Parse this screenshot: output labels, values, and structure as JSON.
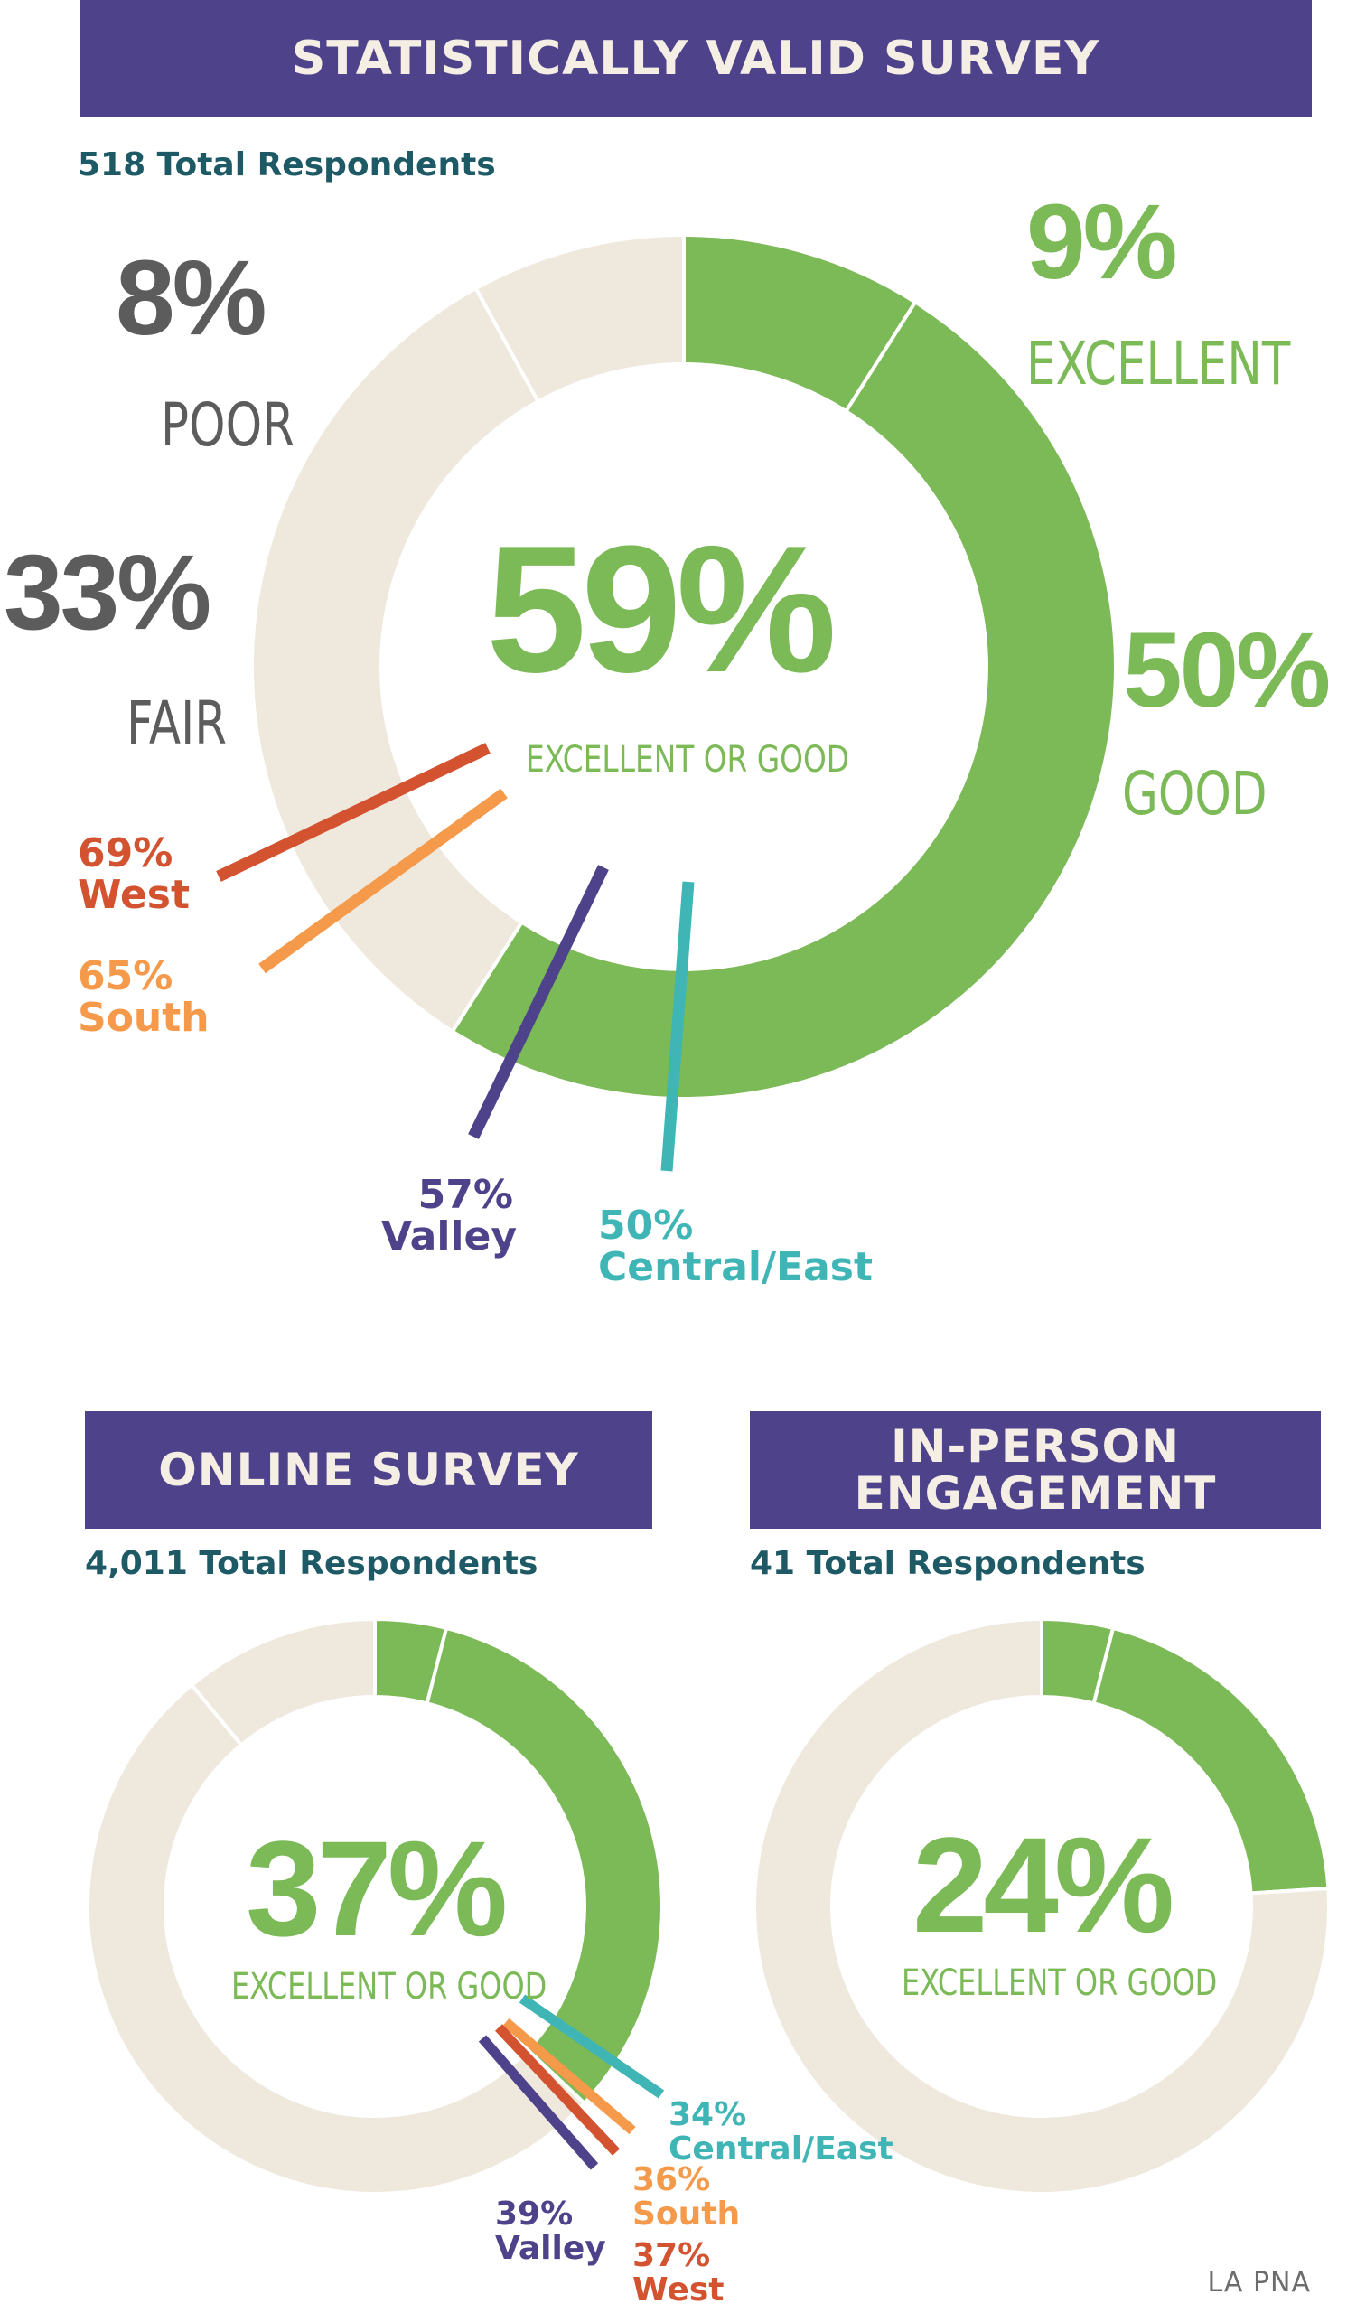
{
  "colors": {
    "banner": "#4e438a",
    "banner_text": "#f5eee4",
    "green": "#7cb957",
    "beige": "#efe8dd",
    "gray": "#5c5c5c",
    "respondents": "#1d5a66",
    "west": "#d35230",
    "south": "#f5994a",
    "valley": "#4e438a",
    "central_east": "#3fb5b5"
  },
  "credit": "LA PNA",
  "chart_data": [
    {
      "type": "pie",
      "title": "STATISTICALLY VALID SURVEY",
      "subtitle": "518 Total Respondents",
      "center_value": "59%",
      "center_label": "EXCELLENT OR GOOD",
      "slices": [
        {
          "label": "EXCELLENT",
          "value": 9,
          "display": "9%"
        },
        {
          "label": "GOOD",
          "value": 50,
          "display": "50%"
        },
        {
          "label": "FAIR",
          "value": 33,
          "display": "33%"
        },
        {
          "label": "POOR",
          "value": 8,
          "display": "8%"
        }
      ],
      "regions": [
        {
          "name": "West",
          "value": 69,
          "display": "69%"
        },
        {
          "name": "South",
          "value": 65,
          "display": "65%"
        },
        {
          "name": "Valley",
          "value": 57,
          "display": "57%"
        },
        {
          "name": "Central/East",
          "value": 50,
          "display": "50%"
        }
      ]
    },
    {
      "type": "pie",
      "title": "ONLINE SURVEY",
      "subtitle": "4,011 Total Respondents",
      "center_value": "37%",
      "center_label": "EXCELLENT OR GOOD",
      "slices": [
        {
          "value": 4
        },
        {
          "value": 33
        },
        {
          "value": 52
        },
        {
          "value": 11
        }
      ],
      "regions": [
        {
          "name": "Central/East",
          "value": 34,
          "display": "34%"
        },
        {
          "name": "South",
          "value": 36,
          "display": "36%"
        },
        {
          "name": "West",
          "value": 37,
          "display": "37%"
        },
        {
          "name": "Valley",
          "value": 39,
          "display": "39%"
        }
      ]
    },
    {
      "type": "pie",
      "title": "IN-PERSON ENGAGEMENT",
      "subtitle": "41 Total Respondents",
      "center_value": "24%",
      "center_label": "EXCELLENT OR GOOD",
      "slices": [
        {
          "value": 4
        },
        {
          "value": 20
        },
        {
          "value": 76
        }
      ]
    }
  ]
}
